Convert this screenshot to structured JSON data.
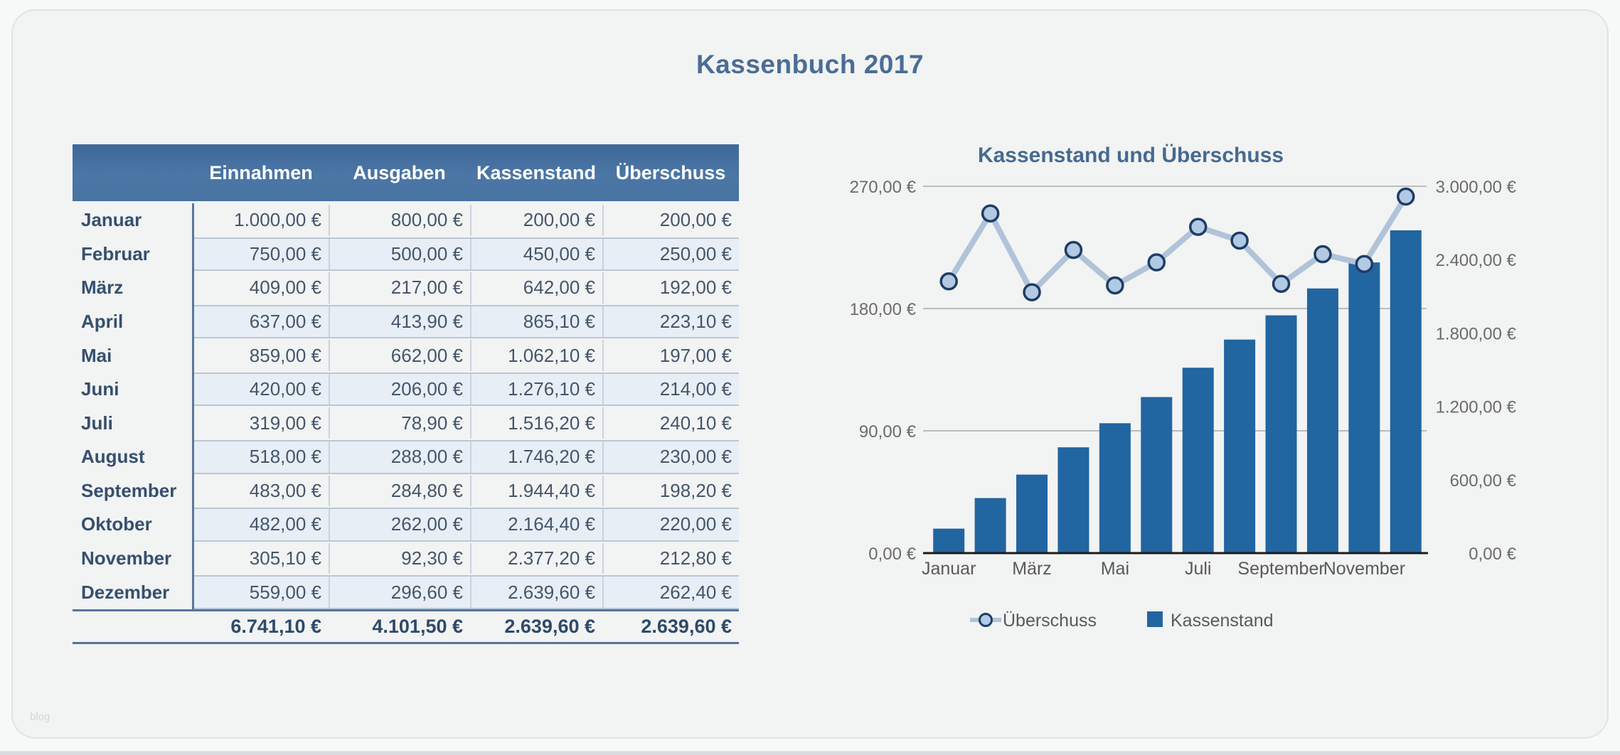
{
  "page": {
    "title": "Kassenbuch 2017",
    "watermark": "blog"
  },
  "colors": {
    "accent_steel_blue": "#4a6d96",
    "table_header_top": "#3f689a",
    "table_header_bottom": "#4973a1",
    "stripe_fill": "#e8eef5",
    "month_separator": "#5b7897",
    "totals_rule": "#54749a"
  },
  "table": {
    "headers": [
      "",
      "Einnahmen",
      "Ausgaben",
      "Kassenstand",
      "Überschuss"
    ],
    "rows": [
      {
        "month": "Januar",
        "values": [
          "1.000,00 €",
          "800,00 €",
          "200,00 €",
          "200,00 €"
        ]
      },
      {
        "month": "Februar",
        "values": [
          "750,00 €",
          "500,00 €",
          "450,00 €",
          "250,00 €"
        ]
      },
      {
        "month": "März",
        "values": [
          "409,00 €",
          "217,00 €",
          "642,00 €",
          "192,00 €"
        ]
      },
      {
        "month": "April",
        "values": [
          "637,00 €",
          "413,90 €",
          "865,10 €",
          "223,10 €"
        ]
      },
      {
        "month": "Mai",
        "values": [
          "859,00 €",
          "662,00 €",
          "1.062,10 €",
          "197,00 €"
        ]
      },
      {
        "month": "Juni",
        "values": [
          "420,00 €",
          "206,00 €",
          "1.276,10 €",
          "214,00 €"
        ]
      },
      {
        "month": "Juli",
        "values": [
          "319,00 €",
          "78,90 €",
          "1.516,20 €",
          "240,10 €"
        ]
      },
      {
        "month": "August",
        "values": [
          "518,00 €",
          "288,00 €",
          "1.746,20 €",
          "230,00 €"
        ]
      },
      {
        "month": "September",
        "values": [
          "483,00 €",
          "284,80 €",
          "1.944,40 €",
          "198,20 €"
        ]
      },
      {
        "month": "Oktober",
        "values": [
          "482,00 €",
          "262,00 €",
          "2.164,40 €",
          "220,00 €"
        ]
      },
      {
        "month": "November",
        "values": [
          "305,10 €",
          "92,30 €",
          "2.377,20 €",
          "212,80 €"
        ]
      },
      {
        "month": "Dezember",
        "values": [
          "559,00 €",
          "296,60 €",
          "2.639,60 €",
          "262,40 €"
        ]
      }
    ],
    "totals": [
      "6.741,10 €",
      "4.101,50 €",
      "2.639,60 €",
      "2.639,60 €"
    ]
  },
  "chart_data": {
    "type": "combo",
    "title": "Kassenstand und Überschuss",
    "categories": [
      "Januar",
      "Februar",
      "März",
      "April",
      "Mai",
      "Juni",
      "Juli",
      "August",
      "September",
      "Oktober",
      "November",
      "Dezember"
    ],
    "series": [
      {
        "name": "Kassenstand",
        "type": "bar",
        "axis": "right",
        "values": [
          200,
          450,
          642,
          865.1,
          1062.1,
          1276.1,
          1516.2,
          1746.2,
          1944.4,
          2164.4,
          2377.2,
          2639.6
        ]
      },
      {
        "name": "Überschuss",
        "type": "line",
        "axis": "left",
        "values": [
          200,
          250,
          192,
          223.1,
          197,
          214,
          240.1,
          230,
          198.2,
          220,
          212.8,
          262.4
        ]
      }
    ],
    "left_axis": {
      "min": 0,
      "max": 270,
      "ticks": [
        {
          "label": "270,00 €",
          "value": 270
        },
        {
          "label": "180,00 €",
          "value": 180
        },
        {
          "label": "90,00 €",
          "value": 90
        },
        {
          "label": "0,00 €",
          "value": 0
        }
      ]
    },
    "right_axis": {
      "min": 0,
      "max": 3000,
      "ticks": [
        {
          "label": "3.000,00 €",
          "value": 3000
        },
        {
          "label": "2.400,00 €",
          "value": 2400
        },
        {
          "label": "1.800,00 €",
          "value": 1800
        },
        {
          "label": "1.200,00 €",
          "value": 1200
        },
        {
          "label": "600,00 €",
          "value": 600
        },
        {
          "label": "0,00 €",
          "value": 0
        }
      ]
    },
    "x_ticks": [
      {
        "label": "Januar",
        "index": 0
      },
      {
        "label": "März",
        "index": 2
      },
      {
        "label": "Mai",
        "index": 4
      },
      {
        "label": "Juli",
        "index": 6
      },
      {
        "label": "September",
        "index": 8
      },
      {
        "label": "November",
        "index": 10
      }
    ],
    "legend": [
      {
        "label": "Überschuss",
        "marker": "circle"
      },
      {
        "label": "Kassenstand",
        "marker": "square"
      }
    ],
    "grid": "on",
    "legend_position": "bottom",
    "colors": {
      "bar": "#2165a1",
      "line": "#b0c3d9",
      "marker_fill": "#b2c9e4",
      "marker_stroke": "#1d3d63",
      "gridline": "#bbbcbe",
      "axis_line": "#1c1c1c",
      "tick_label": "#6b6b6b",
      "title": "#456a90",
      "legend_text": "#595959"
    }
  }
}
